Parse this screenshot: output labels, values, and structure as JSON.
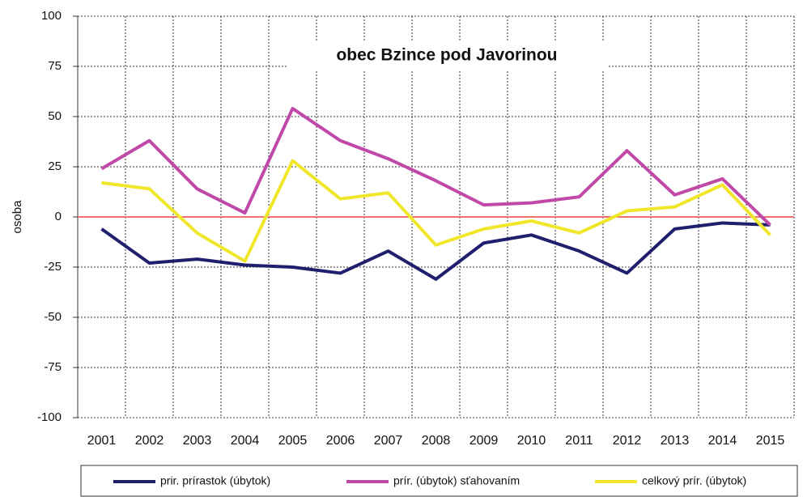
{
  "chart_data": {
    "type": "line",
    "title": "obec Bzince pod Javorinou",
    "y_label": "osoba",
    "categories": [
      "2001",
      "2002",
      "2003",
      "2004",
      "2005",
      "2006",
      "2007",
      "2008",
      "2009",
      "2010",
      "2011",
      "2012",
      "2013",
      "2014",
      "2015"
    ],
    "series": [
      {
        "name": "prir. prírastok (úbytok)",
        "color": "#1f1f6e",
        "values": [
          -6,
          -23,
          -21,
          -24,
          -25,
          -28,
          -17,
          -31,
          -13,
          -9,
          -17,
          -28,
          -6,
          -3,
          -4
        ]
      },
      {
        "name": "prír. (úbytok) sťahovaním",
        "color": "#c048a8",
        "values": [
          24,
          38,
          14,
          2,
          54,
          38,
          29,
          18,
          6,
          7,
          10,
          33,
          11,
          19,
          -4
        ]
      },
      {
        "name": "celkový prír. (úbytok)",
        "color": "#f0e62a",
        "values": [
          17,
          14,
          -8,
          -22,
          28,
          9,
          12,
          -14,
          -6,
          -2,
          -8,
          3,
          5,
          16,
          -9
        ]
      }
    ],
    "ylim": [
      -100,
      100
    ],
    "yticks": [
      -100,
      -75,
      -50,
      -25,
      0,
      25,
      50,
      75,
      100
    ],
    "grid": true,
    "zero_line_color": "#f07070"
  }
}
